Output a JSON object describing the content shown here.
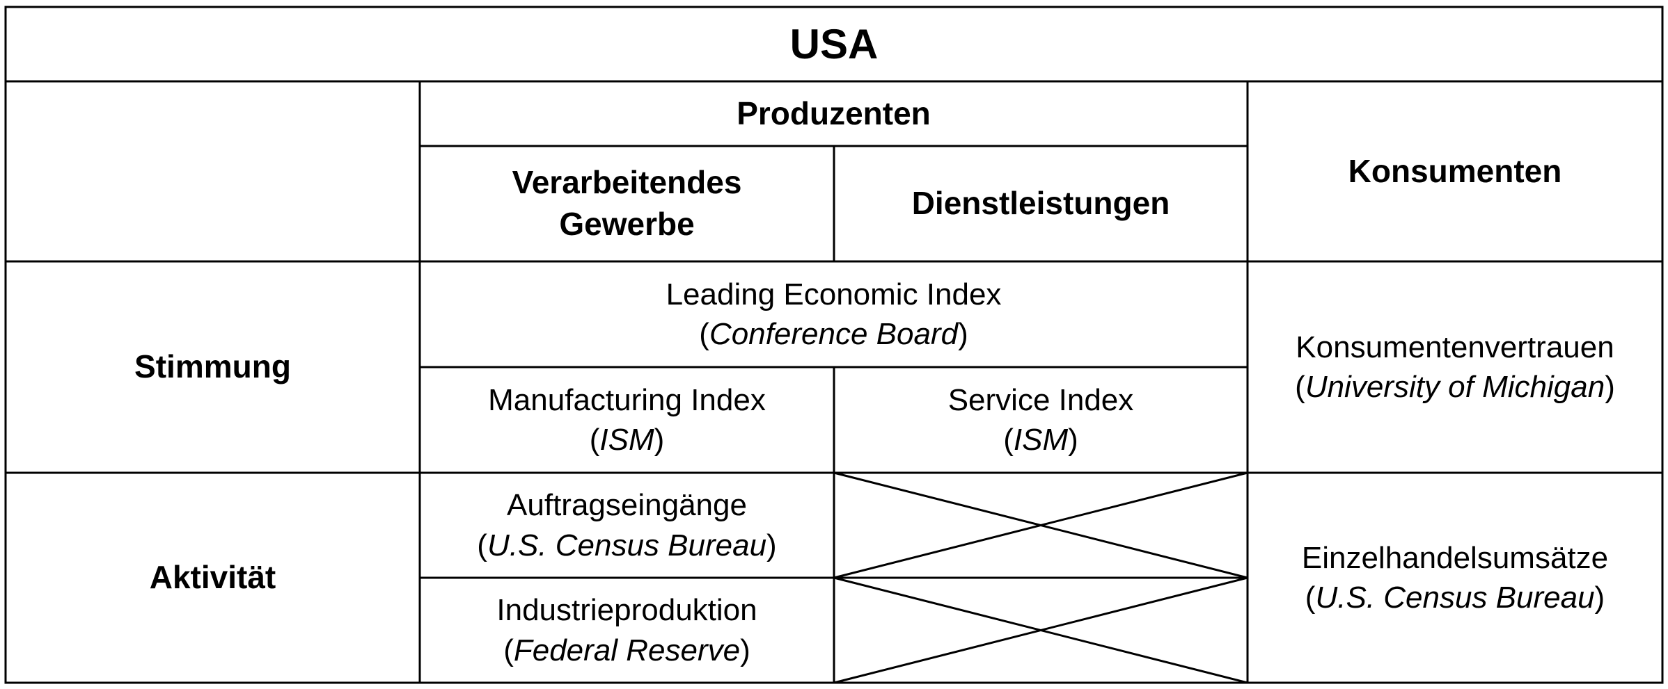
{
  "title": "USA",
  "header": {
    "produzenten": "Produzenten",
    "verarbeitendes_line1": "Verarbeitendes",
    "verarbeitendes_line2": "Gewerbe",
    "dienstleistungen": "Dienstleistungen",
    "konsumenten": "Konsumenten"
  },
  "rows": {
    "stimmung": "Stimmung",
    "aktivitaet": "Aktivität"
  },
  "cells": {
    "leading_index": {
      "name": "Leading Economic Index",
      "source": "Conference Board"
    },
    "manufacturing_index": {
      "name": "Manufacturing Index",
      "source": "ISM"
    },
    "service_index": {
      "name": "Service Index",
      "source": "ISM"
    },
    "konsumentenvertrauen": {
      "name": "Konsumentenvertrauen",
      "source": "University of Michigan"
    },
    "auftragseingaenge": {
      "name": "Auftragseingänge",
      "source": "U.S. Census Bureau"
    },
    "industrieproduktion": {
      "name": "Industrieproduktion",
      "source": "Federal Reserve"
    },
    "einzelhandelsumsaetze": {
      "name": "Einzelhandelsumsätze",
      "source": "U.S. Census Bureau"
    }
  }
}
